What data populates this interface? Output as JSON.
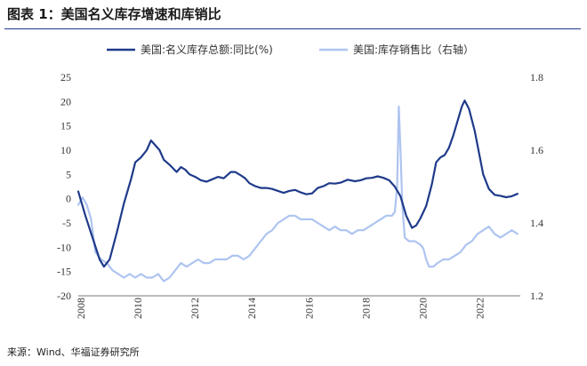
{
  "title": "图表 1：美国名义库存增速和库销比",
  "source": "来源：Wind、华福证券研究所",
  "colors": {
    "inventory_yoy": "#1f3a8a",
    "ratio": "#aec4f0",
    "axis_text": "#333333",
    "title_rule": "#1f3a8a"
  },
  "chart_data": {
    "type": "line",
    "title": "美国名义库存增速和库销比",
    "xlabel": "",
    "ylabel": "",
    "x_ticks": [
      "2008",
      "2010",
      "2012",
      "2014",
      "2016",
      "2018",
      "2020",
      "2022"
    ],
    "xlim": [
      2008.0,
      2023.5
    ],
    "y_left": {
      "lim": [
        -20,
        25
      ],
      "ticks": [
        "25",
        "20",
        "15",
        "10",
        "5",
        "0",
        "-5",
        "-10",
        "-15",
        "-20"
      ]
    },
    "y_right": {
      "lim": [
        1.2,
        1.8
      ],
      "ticks": [
        "1.8",
        "1.6",
        "1.4",
        "1.2"
      ]
    },
    "grid": false,
    "legend_position": "top",
    "series": [
      {
        "name": "美国:名义库存总额:同比(%)",
        "axis": "left",
        "x": [
          2008.0,
          2008.25,
          2008.5,
          2008.75,
          2008.9,
          2009.1,
          2009.35,
          2009.6,
          2009.85,
          2010.0,
          2010.2,
          2010.4,
          2010.55,
          2010.7,
          2010.85,
          2011.0,
          2011.2,
          2011.45,
          2011.6,
          2011.75,
          2011.9,
          2012.1,
          2012.3,
          2012.5,
          2012.7,
          2012.9,
          2013.1,
          2013.35,
          2013.5,
          2013.7,
          2013.85,
          2014.0,
          2014.2,
          2014.4,
          2014.6,
          2014.8,
          2015.0,
          2015.2,
          2015.4,
          2015.6,
          2015.8,
          2016.0,
          2016.2,
          2016.4,
          2016.6,
          2016.8,
          2017.0,
          2017.2,
          2017.45,
          2017.7,
          2017.9,
          2018.1,
          2018.3,
          2018.5,
          2018.7,
          2018.9,
          2019.1,
          2019.3,
          2019.5,
          2019.7,
          2019.85,
          2020.0,
          2020.2,
          2020.4,
          2020.55,
          2020.7,
          2020.85,
          2021.0,
          2021.15,
          2021.3,
          2021.45,
          2021.55,
          2021.7,
          2021.9,
          2022.05,
          2022.2,
          2022.4,
          2022.6,
          2022.8,
          2023.0,
          2023.2,
          2023.4
        ],
        "values": [
          1.5,
          -3.5,
          -8,
          -12.5,
          -14,
          -12.5,
          -7,
          -1,
          4,
          7.5,
          8.5,
          10,
          12,
          11,
          10,
          8,
          7,
          5.5,
          6.5,
          6,
          5,
          4.5,
          3.8,
          3.5,
          4,
          4.5,
          4.2,
          5.5,
          5.5,
          4.8,
          4.2,
          3.2,
          2.6,
          2.2,
          2.2,
          2,
          1.6,
          1.2,
          1.6,
          1.8,
          1.3,
          0.9,
          1.1,
          2.2,
          2.6,
          3.2,
          3.1,
          3.3,
          3.9,
          3.6,
          3.8,
          4.2,
          4.3,
          4.6,
          4.3,
          3.8,
          2.5,
          0.5,
          -3.5,
          -6,
          -5.5,
          -4,
          -1.5,
          3,
          7.5,
          8.5,
          9,
          10.5,
          13,
          16,
          19,
          20.2,
          18.5,
          14,
          9.5,
          5,
          2,
          0.8,
          0.6,
          0.3,
          0.5,
          1
        ]
      },
      {
        "name": "美国:库存销售比（右轴）",
        "axis": "right",
        "x": [
          2008.0,
          2008.15,
          2008.3,
          2008.45,
          2008.6,
          2008.8,
          2009.0,
          2009.2,
          2009.4,
          2009.6,
          2009.8,
          2010.0,
          2010.2,
          2010.4,
          2010.6,
          2010.8,
          2011.0,
          2011.2,
          2011.4,
          2011.6,
          2011.8,
          2012.0,
          2012.2,
          2012.4,
          2012.6,
          2012.8,
          2013.0,
          2013.2,
          2013.4,
          2013.6,
          2013.8,
          2014.0,
          2014.2,
          2014.4,
          2014.6,
          2014.8,
          2015.0,
          2015.2,
          2015.4,
          2015.6,
          2015.8,
          2016.0,
          2016.2,
          2016.4,
          2016.6,
          2016.8,
          2017.0,
          2017.2,
          2017.4,
          2017.6,
          2017.8,
          2018.0,
          2018.2,
          2018.4,
          2018.6,
          2018.8,
          2019.0,
          2019.1,
          2019.18,
          2019.24,
          2019.3,
          2019.36,
          2019.45,
          2019.6,
          2019.8,
          2020.0,
          2020.1,
          2020.2,
          2020.3,
          2020.45,
          2020.6,
          2020.8,
          2021.0,
          2021.2,
          2021.4,
          2021.6,
          2021.8,
          2022.0,
          2022.2,
          2022.4,
          2022.6,
          2022.8,
          2023.0,
          2023.2,
          2023.4
        ],
        "values": [
          1.45,
          1.47,
          1.45,
          1.41,
          1.32,
          1.3,
          1.29,
          1.27,
          1.26,
          1.25,
          1.26,
          1.25,
          1.26,
          1.25,
          1.25,
          1.26,
          1.24,
          1.25,
          1.27,
          1.29,
          1.28,
          1.29,
          1.3,
          1.29,
          1.29,
          1.3,
          1.3,
          1.3,
          1.31,
          1.31,
          1.3,
          1.31,
          1.33,
          1.35,
          1.37,
          1.38,
          1.4,
          1.41,
          1.42,
          1.42,
          1.41,
          1.41,
          1.41,
          1.4,
          1.39,
          1.38,
          1.39,
          1.38,
          1.38,
          1.37,
          1.38,
          1.38,
          1.39,
          1.4,
          1.41,
          1.42,
          1.42,
          1.43,
          1.5,
          1.72,
          1.6,
          1.45,
          1.36,
          1.35,
          1.35,
          1.34,
          1.33,
          1.3,
          1.28,
          1.28,
          1.29,
          1.3,
          1.3,
          1.31,
          1.32,
          1.34,
          1.35,
          1.37,
          1.38,
          1.39,
          1.37,
          1.36,
          1.37,
          1.38,
          1.37
        ]
      }
    ]
  }
}
